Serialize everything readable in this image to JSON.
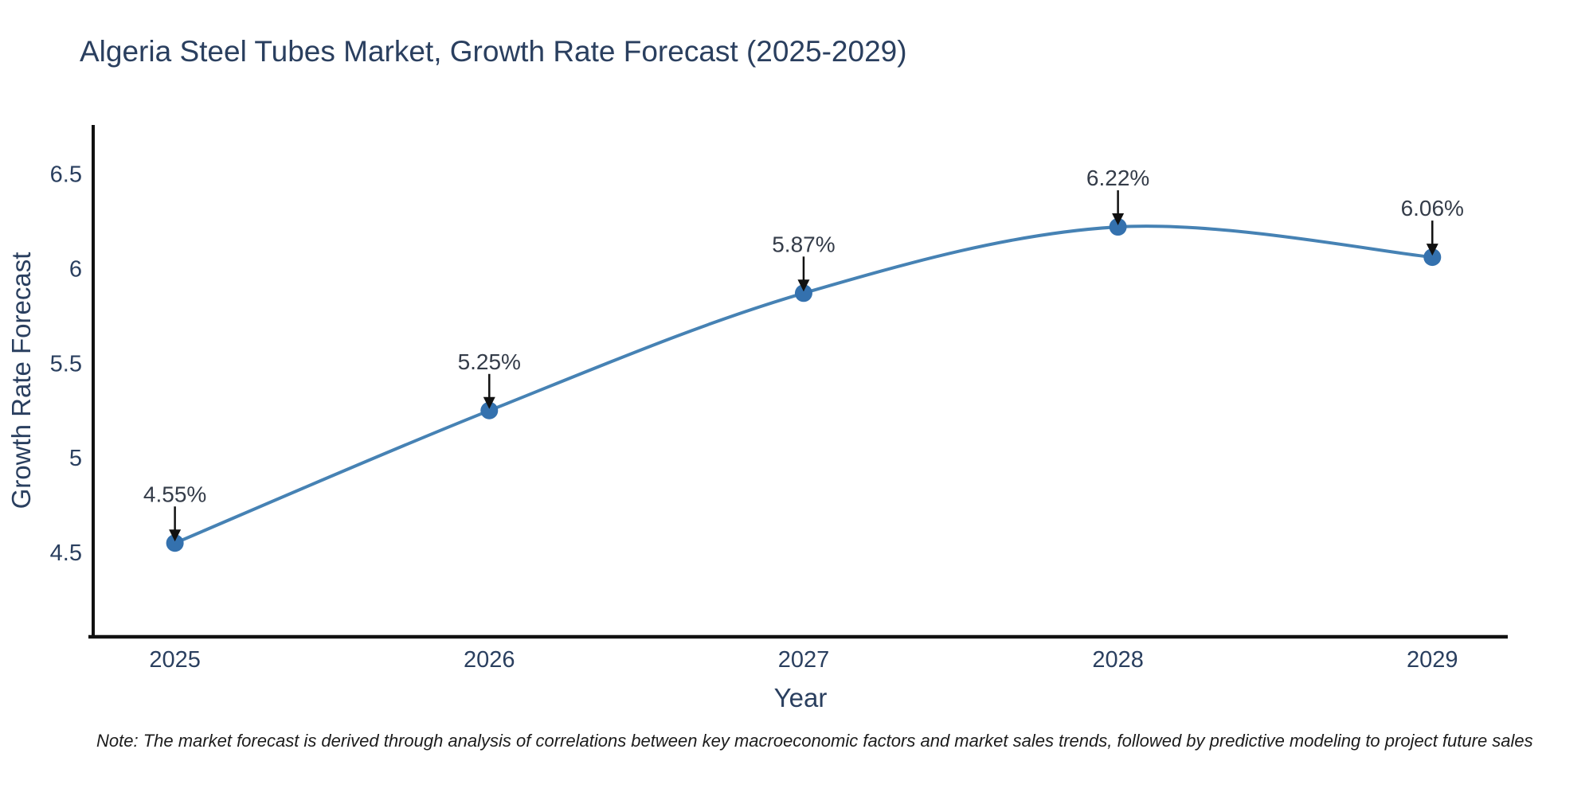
{
  "chart_title": "Algeria Steel Tubes Market, Growth Rate Forecast (2025-2029)",
  "footnote": "Note: The market forecast is derived through analysis of correlations between key macroeconomic factors and market sales trends, followed by predictive modeling to project future sales",
  "chart_data": {
    "type": "line",
    "title": "Algeria Steel Tubes Market, Growth Rate Forecast (2025-2029)",
    "x": [
      2025,
      2026,
      2027,
      2028,
      2029
    ],
    "xtick_labels": [
      "2025",
      "2026",
      "2027",
      "2028",
      "2029"
    ],
    "series": [
      {
        "name": "Growth Rate Forecast",
        "values": [
          4.55,
          5.25,
          5.87,
          6.22,
          6.06
        ]
      }
    ],
    "point_labels": [
      "4.55%",
      "5.25%",
      "5.87%",
      "6.22%",
      "6.06%"
    ],
    "xlabel": "Year",
    "ylabel": "Growth Rate Forecast",
    "ytick_values": [
      4.5,
      5.0,
      5.5,
      6.0,
      6.5
    ],
    "ytick_labels": [
      "4.5",
      "5",
      "5.5",
      "6",
      "6.5"
    ],
    "xlim": [
      2024.74,
      2029.24
    ],
    "ylim": [
      4.055,
      6.75
    ],
    "grid": false,
    "legend": "none",
    "line_shape": "spline",
    "colors": {
      "line": "#4682b4",
      "marker": "#3471ae",
      "axis": "#111111",
      "text": "#2a3f5f",
      "annotation": "#343c49",
      "arrow": "#111111"
    }
  }
}
